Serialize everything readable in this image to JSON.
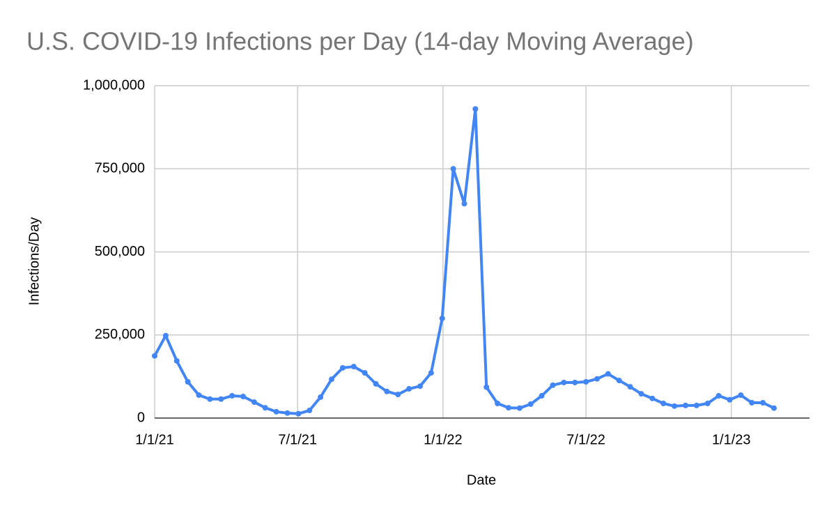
{
  "chart_data": {
    "type": "line",
    "title": "U.S. COVID-19 Infections per Day (14-day Moving Average)",
    "x_label": "Date",
    "y_label": "Infections/Day",
    "x": [
      "1/1/21",
      "1/15/21",
      "1/29/21",
      "2/12/21",
      "2/26/21",
      "3/12/21",
      "3/26/21",
      "4/9/21",
      "4/23/21",
      "5/7/21",
      "5/21/21",
      "6/4/21",
      "6/18/21",
      "7/2/21",
      "7/16/21",
      "7/30/21",
      "8/13/21",
      "8/27/21",
      "9/10/21",
      "9/24/21",
      "10/8/21",
      "10/22/21",
      "11/5/21",
      "11/19/21",
      "12/3/21",
      "12/17/21",
      "12/31/21",
      "1/14/22",
      "1/28/22",
      "2/11/22",
      "2/25/22",
      "3/11/22",
      "3/25/22",
      "4/8/22",
      "4/22/22",
      "5/6/22",
      "5/20/22",
      "6/3/22",
      "6/17/22",
      "7/1/22",
      "7/15/22",
      "7/29/22",
      "8/12/22",
      "8/26/22",
      "9/9/22",
      "9/23/22",
      "10/7/22",
      "10/21/22",
      "11/4/22",
      "11/18/22",
      "12/2/22",
      "12/16/22",
      "12/30/22",
      "1/13/23",
      "1/27/23",
      "2/10/23",
      "2/24/23"
    ],
    "series": [
      {
        "name": "Infections/Day",
        "color": "#4285f4",
        "values": [
          187000,
          248000,
          172000,
          109000,
          69000,
          57000,
          57000,
          67000,
          65000,
          48000,
          31000,
          19000,
          15000,
          13000,
          23000,
          63000,
          117000,
          151000,
          155000,
          136000,
          103000,
          80000,
          71000,
          88000,
          96000,
          136000,
          300000,
          750000,
          645000,
          930000,
          93000,
          44000,
          31000,
          30000,
          42000,
          67000,
          99000,
          107000,
          107000,
          109000,
          118000,
          133000,
          113000,
          94000,
          73000,
          59000,
          44000,
          36000,
          38000,
          38000,
          44000,
          67000,
          55000,
          69000,
          46000,
          46000,
          30000
        ]
      }
    ],
    "xlim": [
      "1/1/21",
      "4/10/23"
    ],
    "xticks": [
      "1/1/21",
      "7/1/21",
      "1/1/22",
      "7/1/22",
      "1/1/23"
    ],
    "ylim": [
      0,
      1000000
    ],
    "yticks": [
      0,
      {
        "value": 250000,
        "label": "250,000"
      },
      {
        "value": 500000,
        "label": "500,000"
      },
      {
        "value": 750000,
        "label": "750,000"
      },
      {
        "value": 1000000,
        "label": "1,000,000"
      }
    ],
    "grid": true
  }
}
